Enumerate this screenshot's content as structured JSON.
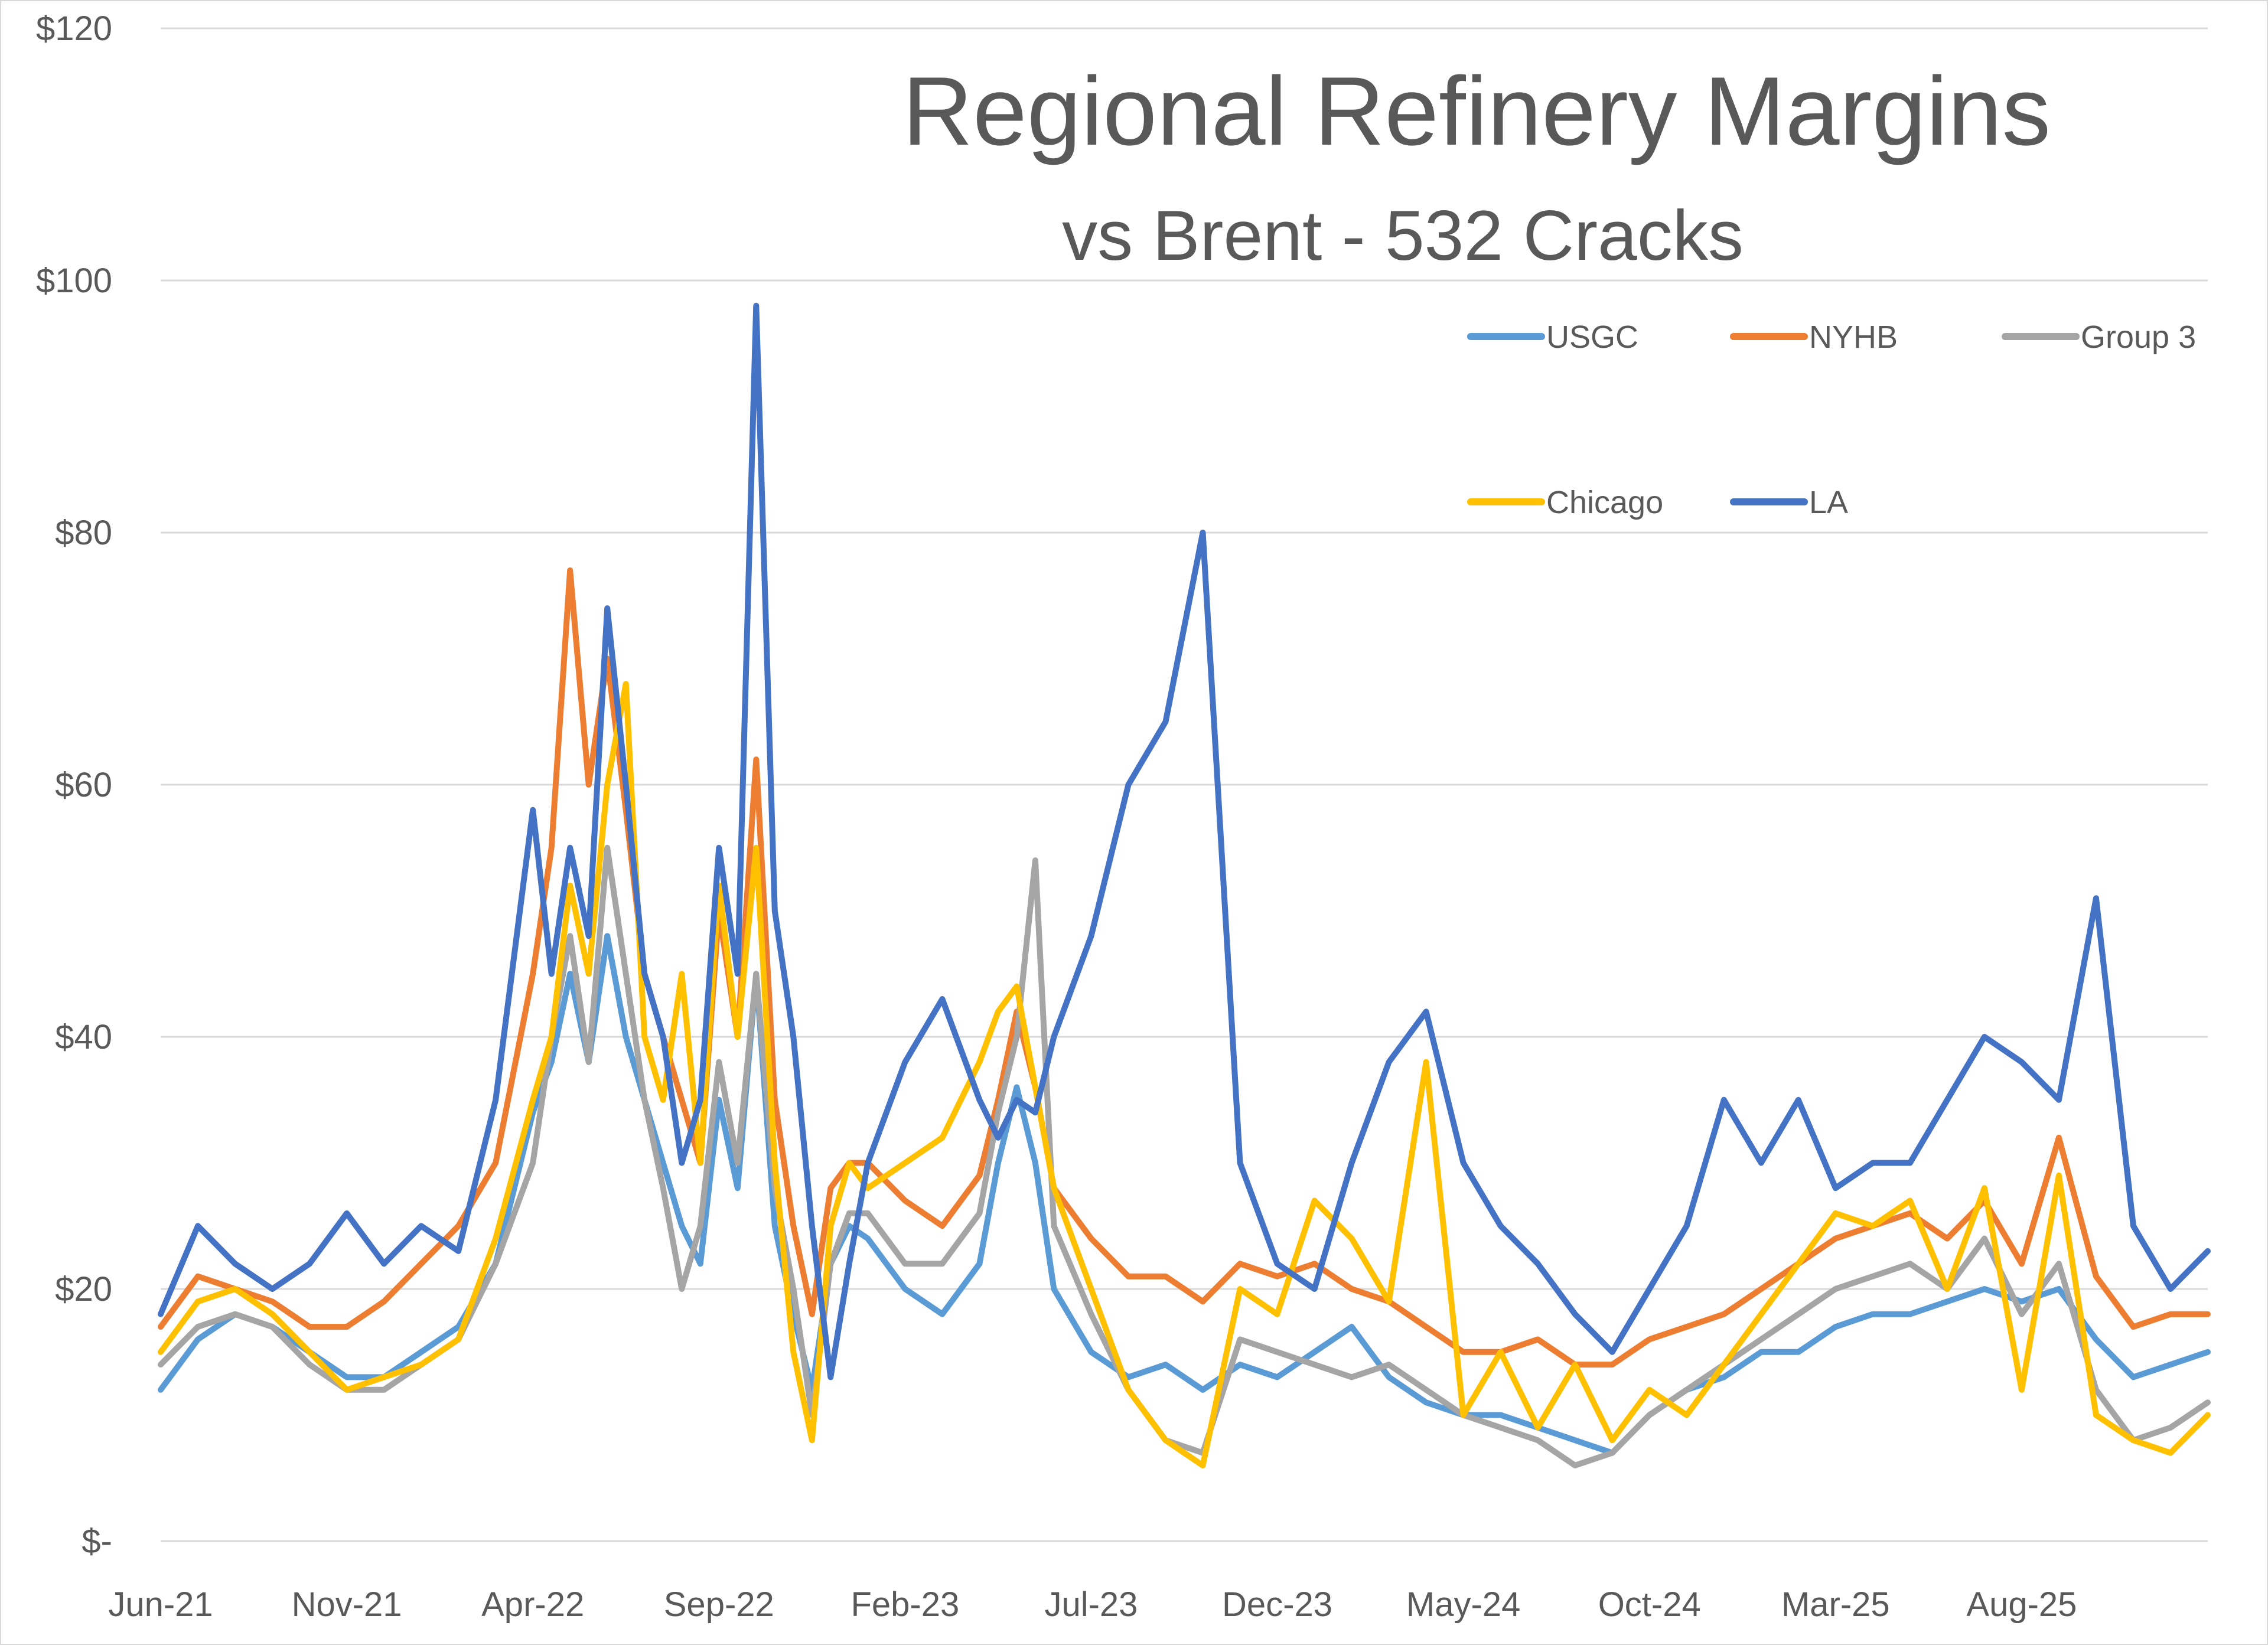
{
  "chart_data": {
    "type": "line",
    "title": "Regional Refinery Margins",
    "subtitle": "vs Brent - 532 Cracks",
    "xlabel": "",
    "ylabel": "",
    "ylim": [
      0,
      120
    ],
    "y_ticks": [
      {
        "value": 0,
        "label": "$-"
      },
      {
        "value": 20,
        "label": "$20"
      },
      {
        "value": 40,
        "label": "$40"
      },
      {
        "value": 60,
        "label": "$60"
      },
      {
        "value": 80,
        "label": "$80"
      },
      {
        "value": 100,
        "label": "$100"
      },
      {
        "value": 120,
        "label": "$120"
      }
    ],
    "grid": true,
    "legend_position": "top-right",
    "x_tick_labels": [
      "Jun-21",
      "Nov-21",
      "Apr-22",
      "Sep-22",
      "Feb-23",
      "Jul-23",
      "Dec-23",
      "May-24",
      "Oct-24",
      "Mar-25",
      "Aug-25"
    ],
    "x_range_months": [
      0,
      55
    ],
    "series": [
      {
        "name": "USGC",
        "color": "#5B9BD5",
        "x": [
          0,
          1,
          2,
          3,
          4,
          5,
          6,
          7,
          8,
          9,
          10,
          10.5,
          11,
          11.5,
          12,
          12.5,
          13,
          13.5,
          14,
          14.5,
          15,
          15.5,
          16,
          16.5,
          17,
          17.5,
          18,
          18.5,
          19,
          20,
          21,
          22,
          22.5,
          23,
          23.5,
          24,
          25,
          26,
          27,
          28,
          29,
          30,
          31,
          32,
          33,
          34,
          35,
          36,
          37,
          38,
          39,
          40,
          41,
          42,
          43,
          44,
          45,
          46,
          47,
          48,
          49,
          50,
          51,
          52,
          53,
          54,
          55
        ],
        "values": [
          12,
          16,
          18,
          17,
          15,
          13,
          13,
          15,
          17,
          22,
          34,
          38,
          45,
          38,
          48,
          40,
          35,
          30,
          25,
          22,
          35,
          28,
          45,
          25,
          18,
          12,
          22,
          25,
          24,
          20,
          18,
          22,
          30,
          36,
          30,
          20,
          15,
          13,
          14,
          12,
          14,
          13,
          15,
          17,
          13,
          11,
          10,
          10,
          9,
          8,
          7,
          10,
          12,
          13,
          15,
          15,
          17,
          18,
          18,
          19,
          20,
          19,
          20,
          16,
          13,
          14,
          15
        ]
      },
      {
        "name": "NYHB",
        "color": "#ED7D31",
        "x": [
          0,
          1,
          2,
          3,
          4,
          5,
          6,
          7,
          8,
          9,
          10,
          10.5,
          11,
          11.5,
          12,
          12.5,
          13,
          13.5,
          14,
          14.5,
          15,
          15.5,
          16,
          16.5,
          17,
          17.5,
          18,
          18.5,
          19,
          20,
          21,
          22,
          22.5,
          23,
          23.5,
          24,
          25,
          26,
          27,
          28,
          29,
          30,
          31,
          32,
          33,
          34,
          35,
          36,
          37,
          38,
          39,
          40,
          41,
          42,
          43,
          44,
          45,
          46,
          47,
          48,
          49,
          50,
          51,
          52,
          53,
          54,
          55
        ],
        "values": [
          17,
          21,
          20,
          19,
          17,
          17,
          19,
          22,
          25,
          30,
          45,
          55,
          77,
          60,
          70,
          58,
          45,
          40,
          35,
          30,
          50,
          40,
          62,
          35,
          25,
          18,
          28,
          30,
          30,
          27,
          25,
          29,
          35,
          42,
          36,
          28,
          24,
          21,
          21,
          19,
          22,
          21,
          22,
          20,
          19,
          17,
          15,
          15,
          16,
          14,
          14,
          16,
          17,
          18,
          20,
          22,
          24,
          25,
          26,
          24,
          27,
          22,
          32,
          21,
          17,
          18,
          18
        ]
      },
      {
        "name": "Group 3",
        "color": "#A5A5A5",
        "x": [
          0,
          1,
          2,
          3,
          4,
          5,
          6,
          7,
          8,
          9,
          10,
          10.5,
          11,
          11.5,
          12,
          12.5,
          13,
          13.5,
          14,
          14.5,
          15,
          15.5,
          16,
          16.5,
          17,
          17.5,
          18,
          18.5,
          19,
          20,
          21,
          22,
          22.5,
          23,
          23.5,
          24,
          25,
          26,
          27,
          28,
          29,
          30,
          31,
          32,
          33,
          34,
          35,
          36,
          37,
          38,
          39,
          40,
          41,
          42,
          43,
          44,
          45,
          46,
          47,
          48,
          49,
          50,
          51,
          52,
          53,
          54,
          55
        ],
        "values": [
          14,
          17,
          18,
          17,
          14,
          12,
          12,
          14,
          16,
          22,
          30,
          40,
          48,
          38,
          55,
          45,
          35,
          28,
          20,
          25,
          38,
          30,
          45,
          28,
          20,
          10,
          22,
          26,
          26,
          22,
          22,
          26,
          34,
          40,
          54,
          25,
          18,
          12,
          8,
          7,
          16,
          15,
          14,
          13,
          14,
          12,
          10,
          9,
          8,
          6,
          7,
          10,
          12,
          14,
          16,
          18,
          20,
          21,
          22,
          20,
          24,
          18,
          22,
          12,
          8,
          9,
          11
        ]
      },
      {
        "name": "Chicago",
        "color": "#FFC000",
        "x": [
          0,
          1,
          2,
          3,
          4,
          5,
          6,
          7,
          8,
          9,
          10,
          10.5,
          11,
          11.5,
          12,
          12.5,
          13,
          13.5,
          14,
          14.5,
          15,
          15.5,
          16,
          16.5,
          17,
          17.5,
          18,
          18.5,
          19,
          20,
          21,
          22,
          22.5,
          23,
          23.5,
          24,
          25,
          26,
          27,
          28,
          29,
          30,
          31,
          32,
          33,
          34,
          35,
          36,
          37,
          38,
          39,
          40,
          41,
          42,
          43,
          44,
          45,
          46,
          47,
          48,
          49,
          50,
          51,
          52,
          53,
          54,
          55
        ],
        "values": [
          15,
          19,
          20,
          18,
          15,
          12,
          13,
          14,
          16,
          24,
          35,
          40,
          52,
          45,
          60,
          68,
          40,
          35,
          45,
          30,
          52,
          40,
          55,
          30,
          15,
          8,
          25,
          30,
          28,
          30,
          32,
          38,
          42,
          44,
          36,
          28,
          20,
          12,
          8,
          6,
          20,
          18,
          27,
          24,
          19,
          38,
          10,
          15,
          9,
          14,
          8,
          12,
          10,
          14,
          18,
          22,
          26,
          25,
          27,
          20,
          28,
          12,
          29,
          10,
          8,
          7,
          10
        ]
      },
      {
        "name": "LA",
        "color": "#4472C4",
        "x": [
          0,
          1,
          2,
          3,
          4,
          5,
          6,
          7,
          8,
          9,
          10,
          10.5,
          11,
          11.5,
          12,
          12.5,
          13,
          13.5,
          14,
          14.5,
          15,
          15.5,
          16,
          16.5,
          17,
          17.5,
          18,
          18.5,
          19,
          20,
          21,
          22,
          22.5,
          23,
          23.5,
          24,
          25,
          26,
          27,
          28,
          29,
          30,
          31,
          32,
          33,
          34,
          35,
          36,
          37,
          38,
          39,
          40,
          41,
          42,
          43,
          44,
          45,
          46,
          47,
          48,
          49,
          50,
          51,
          52,
          53,
          54,
          55
        ],
        "values": [
          18,
          25,
          22,
          20,
          22,
          26,
          22,
          25,
          23,
          35,
          58,
          45,
          55,
          48,
          74,
          60,
          45,
          40,
          30,
          35,
          55,
          45,
          98,
          50,
          40,
          25,
          13,
          22,
          30,
          38,
          43,
          35,
          32,
          35,
          34,
          40,
          48,
          60,
          65,
          80,
          30,
          22,
          20,
          30,
          38,
          42,
          30,
          25,
          22,
          18,
          15,
          20,
          25,
          35,
          30,
          35,
          28,
          30,
          30,
          35,
          40,
          38,
          35,
          51,
          25,
          20,
          23
        ]
      }
    ],
    "legend": [
      "USGC",
      "NYHB",
      "Group 3",
      "Chicago",
      "LA"
    ]
  }
}
